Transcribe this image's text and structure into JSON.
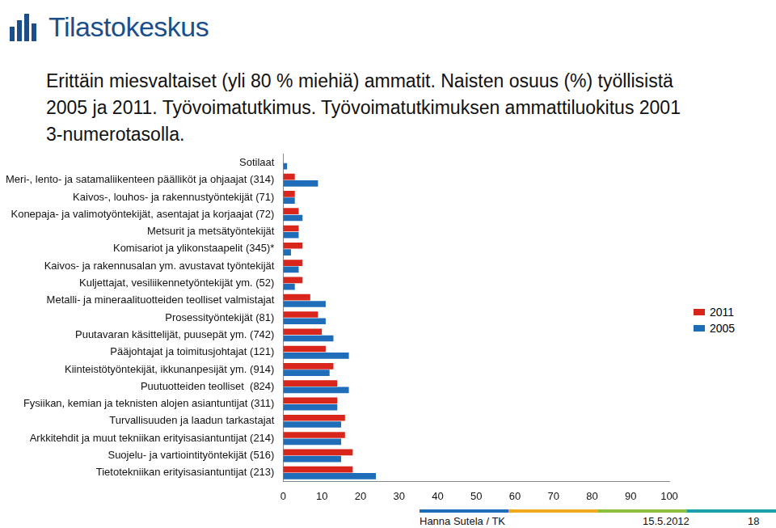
{
  "header": {
    "logo_text": "Tilastokeskus"
  },
  "chart_data": {
    "type": "bar",
    "orientation": "horizontal",
    "title": "Erittäin miesvaltaiset (yli 80 % miehiä) ammatit. Naisten osuus (%) työllisistä 2005 ja 2011. Työvoimatutkimus. Työvoimatutkimuksen ammattiluokitus 2001 3-numerotasolla.",
    "categories": [
      "Sotilaat",
      "Meri-, lento- ja satamaliikenteen päälliköt ja ohjaajat (314)",
      "Kaivos-, louhos- ja rakennustyöntekijät (71)",
      "Konepaja- ja valimotyöntekijät, asentajat ja korjaajat (72)",
      "Metsurit ja metsätyöntekijät",
      "Komisariot ja ylikonstaapelit (345)*",
      "Kaivos- ja rakennusalan ym. avustavat työntekijät",
      "Kuljettajat, vesiliikennetyöntekijät ym. (52)",
      "Metalli- ja mineraalituotteiden teolliset valmistajat",
      "Prosessityöntekijät (81)",
      "Puutavaran käsittelijät, puusepät ym. (742)",
      "Pääjohtajat ja toimitusjohtajat (121)",
      "Kiinteistötyöntekijät, ikkunanpesijät ym. (914)",
      "Puutuotteiden teolliset  (824)",
      "Fysiikan, kemian ja teknisten alojen asiantuntijat (311)",
      "Turvallisuuden ja laadun tarkastajat",
      "Arkkitehdit ja muut tekniikan erityisasiantuntijat (214)",
      "Suojelu- ja vartiointityöntekijät (516)",
      "Tietotekniikan erityisasiantuntijat (213)"
    ],
    "series": [
      {
        "name": "2011",
        "color": "#d8261c",
        "values": [
          0,
          3,
          3,
          4,
          4,
          5,
          5,
          5,
          7,
          9,
          10,
          11,
          13,
          14,
          14,
          16,
          16,
          18,
          18
        ]
      },
      {
        "name": "2005",
        "color": "#1f6cb8",
        "values": [
          1,
          9,
          3,
          5,
          4,
          2,
          4,
          3,
          11,
          11,
          13,
          17,
          12,
          17,
          14,
          15,
          15,
          15,
          24
        ]
      }
    ],
    "xlim": [
      0,
      100
    ],
    "xticks": [
      0,
      10,
      20,
      30,
      40,
      50,
      60,
      70,
      80,
      90,
      100
    ],
    "grid": false,
    "legend": "right"
  },
  "footer": {
    "author": "Hanna Sutela / TK",
    "date": "15.5.2012",
    "page": "18"
  }
}
